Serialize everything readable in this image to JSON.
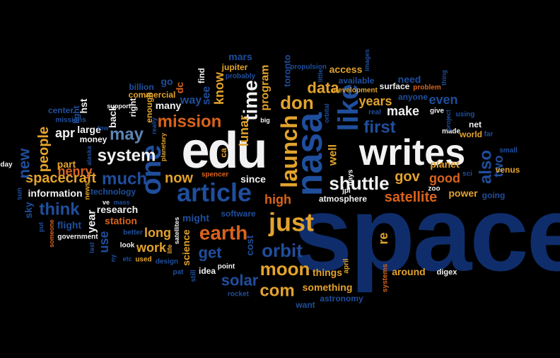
{
  "palette": {
    "background": "#000000",
    "white": "#f2f2f2",
    "gold": "#e3a32c",
    "orange": "#d9631c",
    "steel": "#5c86b4",
    "blue": "#1f4e9c",
    "navy": "#0f2d6b"
  },
  "words": [
    {
      "text": "space",
      "color": "navy"
    },
    {
      "text": "edu",
      "color": "white"
    },
    {
      "text": "writes",
      "color": "white"
    },
    {
      "text": "nasa",
      "color": "blue"
    },
    {
      "text": "article",
      "color": "blue"
    },
    {
      "text": "one",
      "color": "blue"
    },
    {
      "text": "like",
      "color": "blue"
    },
    {
      "text": "launch",
      "color": "gold"
    },
    {
      "text": "just",
      "color": "gold"
    },
    {
      "text": "earth",
      "color": "orange"
    },
    {
      "text": "shuttle",
      "color": "white"
    },
    {
      "text": "orbit",
      "color": "blue"
    },
    {
      "text": "moon",
      "color": "gold"
    },
    {
      "text": "system",
      "color": "white"
    },
    {
      "text": "mission",
      "color": "orange"
    },
    {
      "text": "time",
      "color": "white"
    },
    {
      "text": "don",
      "color": "gold"
    },
    {
      "text": "com",
      "color": "gold"
    },
    {
      "text": "first",
      "color": "blue"
    },
    {
      "text": "may",
      "color": "steel"
    },
    {
      "text": "much",
      "color": "blue"
    },
    {
      "text": "solar",
      "color": "blue"
    },
    {
      "text": "get",
      "color": "blue"
    },
    {
      "text": "data",
      "color": "gold"
    },
    {
      "text": "now",
      "color": "gold"
    },
    {
      "text": "think",
      "color": "blue"
    },
    {
      "text": "spacecraft",
      "color": "gold"
    },
    {
      "text": "people",
      "color": "gold"
    },
    {
      "text": "new",
      "color": "blue"
    },
    {
      "text": "also",
      "color": "blue"
    },
    {
      "text": "satellite",
      "color": "orange"
    },
    {
      "text": "high",
      "color": "orange"
    },
    {
      "text": "henry",
      "color": "orange"
    },
    {
      "text": "apr",
      "color": "white"
    },
    {
      "text": "gov",
      "color": "gold"
    },
    {
      "text": "make",
      "color": "white"
    },
    {
      "text": "years",
      "color": "gold"
    },
    {
      "text": "program",
      "color": "gold"
    },
    {
      "text": "lunar",
      "color": "gold"
    },
    {
      "text": "know",
      "color": "gold"
    },
    {
      "text": "well",
      "color": "gold"
    },
    {
      "text": "two",
      "color": "blue"
    },
    {
      "text": "good",
      "color": "orange"
    },
    {
      "text": "even",
      "color": "blue"
    },
    {
      "text": "research",
      "color": "white"
    },
    {
      "text": "information",
      "color": "white"
    },
    {
      "text": "long",
      "color": "gold"
    },
    {
      "text": "work",
      "color": "gold"
    },
    {
      "text": "re",
      "color": "gold"
    },
    {
      "text": "use",
      "color": "blue"
    },
    {
      "text": "year",
      "color": "white"
    },
    {
      "text": "science",
      "color": "gold"
    },
    {
      "text": "might",
      "color": "blue"
    },
    {
      "text": "way",
      "color": "blue"
    },
    {
      "text": "see",
      "color": "blue"
    },
    {
      "text": "cost",
      "color": "blue"
    },
    {
      "text": "things",
      "color": "gold"
    },
    {
      "text": "around",
      "color": "gold"
    },
    {
      "text": "power",
      "color": "gold"
    },
    {
      "text": "planet",
      "color": "gold"
    },
    {
      "text": "station",
      "color": "orange"
    },
    {
      "text": "flight",
      "color": "blue"
    },
    {
      "text": "part",
      "color": "gold"
    },
    {
      "text": "large",
      "color": "white"
    },
    {
      "text": "many",
      "color": "white"
    },
    {
      "text": "mars",
      "color": "blue"
    },
    {
      "text": "toronto",
      "color": "blue"
    },
    {
      "text": "access",
      "color": "gold"
    },
    {
      "text": "need",
      "color": "blue"
    },
    {
      "text": "since",
      "color": "white"
    },
    {
      "text": "something",
      "color": "gold"
    },
    {
      "text": "sky",
      "color": "blue"
    },
    {
      "text": "hst",
      "color": "white"
    },
    {
      "text": "back",
      "color": "white"
    },
    {
      "text": "go",
      "color": "blue"
    },
    {
      "text": "dc",
      "color": "orange"
    },
    {
      "text": "technology",
      "color": "blue"
    },
    {
      "text": "surface",
      "color": "white"
    },
    {
      "text": "anyone",
      "color": "blue"
    },
    {
      "text": "available",
      "color": "blue"
    },
    {
      "text": "world",
      "color": "gold"
    },
    {
      "text": "venus",
      "color": "gold"
    },
    {
      "text": "going",
      "color": "blue"
    },
    {
      "text": "net",
      "color": "white"
    },
    {
      "text": "atmosphere",
      "color": "white"
    },
    {
      "text": "software",
      "color": "blue"
    },
    {
      "text": "astronomy",
      "color": "blue"
    },
    {
      "text": "want",
      "color": "blue"
    },
    {
      "text": "idea",
      "color": "white"
    },
    {
      "text": "digex",
      "color": "white"
    },
    {
      "text": "jupiter",
      "color": "gold"
    },
    {
      "text": "find",
      "color": "white"
    },
    {
      "text": "right",
      "color": "white"
    },
    {
      "text": "enough",
      "color": "gold"
    },
    {
      "text": "billion",
      "color": "blue"
    },
    {
      "text": "commercial",
      "color": "gold"
    },
    {
      "text": "center",
      "color": "blue"
    },
    {
      "text": "money",
      "color": "white"
    },
    {
      "text": "light",
      "color": "blue"
    },
    {
      "text": "day",
      "color": "white"
    },
    {
      "text": "sun",
      "color": "blue"
    },
    {
      "text": "development",
      "color": "gold"
    },
    {
      "text": "real",
      "color": "blue"
    },
    {
      "text": "problem",
      "color": "orange"
    },
    {
      "text": "give",
      "color": "white"
    },
    {
      "text": "using",
      "color": "blue"
    },
    {
      "text": "made",
      "color": "white"
    },
    {
      "text": "far",
      "color": "blue"
    },
    {
      "text": "small",
      "color": "blue"
    },
    {
      "text": "government",
      "color": "white"
    },
    {
      "text": "better",
      "color": "blue"
    },
    {
      "text": "look",
      "color": "white"
    },
    {
      "text": "used",
      "color": "gold"
    },
    {
      "text": "design",
      "color": "blue"
    },
    {
      "text": "pat",
      "color": "blue"
    },
    {
      "text": "still",
      "color": "blue"
    },
    {
      "text": "point",
      "color": "white"
    },
    {
      "text": "rocket",
      "color": "blue"
    },
    {
      "text": "systems",
      "color": "orange"
    },
    {
      "text": "propulsion",
      "color": "blue"
    },
    {
      "text": "probably",
      "color": "blue"
    },
    {
      "text": "days",
      "color": "white"
    },
    {
      "text": "jpl",
      "color": "white"
    },
    {
      "text": "ca",
      "color": "gold"
    },
    {
      "text": "spencer",
      "color": "orange"
    },
    {
      "text": "zoo",
      "color": "white"
    },
    {
      "text": "sci",
      "color": "blue"
    },
    {
      "text": "april",
      "color": "gold"
    },
    {
      "text": "images",
      "color": "blue"
    },
    {
      "text": "little",
      "color": "blue"
    },
    {
      "text": "orbital",
      "color": "blue"
    },
    {
      "text": "big",
      "color": "white"
    },
    {
      "text": "thing",
      "color": "blue"
    },
    {
      "text": "project",
      "color": "blue"
    },
    {
      "text": "support",
      "color": "white"
    },
    {
      "text": "missions",
      "color": "blue"
    },
    {
      "text": "low",
      "color": "blue"
    },
    {
      "text": "alaska",
      "color": "blue"
    },
    {
      "text": "news",
      "color": "gold"
    },
    {
      "text": "ve",
      "color": "white"
    },
    {
      "text": "mass",
      "color": "blue"
    },
    {
      "text": "etc",
      "color": "blue"
    },
    {
      "text": "planetary",
      "color": "gold"
    },
    {
      "text": "really",
      "color": "blue"
    },
    {
      "text": "life",
      "color": "gold"
    },
    {
      "text": "satellites",
      "color": "white"
    },
    {
      "text": "put",
      "color": "blue"
    },
    {
      "text": "someone",
      "color": "orange"
    },
    {
      "text": "last",
      "color": "blue"
    },
    {
      "text": "ny",
      "color": "blue"
    }
  ]
}
